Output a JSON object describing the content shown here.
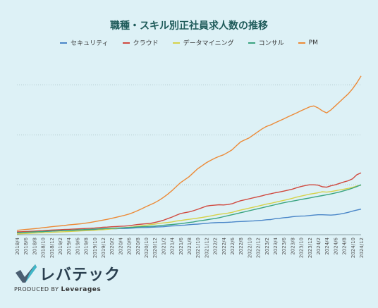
{
  "logo": {
    "name": "レバテック",
    "produced_by": "PRODUCED BY",
    "brand": "Leverages"
  },
  "colors": {
    "background": "#ddf1f6",
    "grid": "#b0c8cc"
  },
  "chart_data": {
    "type": "line",
    "title": "職種・スキル別正社員求人数の推移",
    "xlabel": "",
    "ylabel": "",
    "grid": true,
    "legend_placement": "top-center",
    "x": [
      "2018/4",
      "2018/5",
      "2018/6",
      "2018/7",
      "2018/8",
      "2018/9",
      "2018/10",
      "2018/11",
      "2018/12",
      "2019/1",
      "2019/2",
      "2019/3",
      "2019/4",
      "2019/5",
      "2019/6",
      "2019/7",
      "2019/8",
      "2019/9",
      "2019/10",
      "2019/11",
      "2019/12",
      "2020/1",
      "2020/2",
      "2020/3",
      "2020/4",
      "2020/5",
      "2020/6",
      "2020/7",
      "2020/8",
      "2020/9",
      "2020/10",
      "2020/11",
      "2020/12",
      "2021/1",
      "2021/2",
      "2021/3",
      "2021/4",
      "2021/5",
      "2021/6",
      "2021/7",
      "2021/8",
      "2021/9",
      "2021/10",
      "2021/11",
      "2021/12",
      "2022/1",
      "2022/2",
      "2022/3",
      "2022/4",
      "2022/5",
      "2022/6",
      "2022/7",
      "2022/8",
      "2022/9",
      "2022/10",
      "2022/11",
      "2022/12",
      "2023/1",
      "2023/2",
      "2023/3",
      "2023/4",
      "2023/5",
      "2023/6",
      "2023/7",
      "2023/8",
      "2023/9",
      "2023/10",
      "2023/11",
      "2023/12",
      "2024/1",
      "2024/2",
      "2024/3",
      "2024/4",
      "2024/5",
      "2024/6",
      "2024/7",
      "2024/8",
      "2024/9",
      "2024/10",
      "2024/11",
      "2024/12"
    ],
    "x_tick_labels": [
      "2018/4",
      "2018/6",
      "2018/8",
      "2018/10",
      "2018/12",
      "2019/2",
      "2019/4",
      "2019/6",
      "2019/8",
      "2019/10",
      "2019/12",
      "2020/2",
      "2020/4",
      "2020/6",
      "2020/8",
      "2020/10",
      "2020/12",
      "2021/2",
      "2021/4",
      "2021/6",
      "2021/8",
      "2021/10",
      "2021/12",
      "2022/2",
      "2022/4",
      "2022/6",
      "2022/8",
      "2022/10",
      "2022/12",
      "2023/2",
      "2023/4",
      "2023/6",
      "2023/8",
      "2023/10",
      "2023/12",
      "2024/2",
      "2024/4",
      "2024/6",
      "2024/8",
      "2024/10",
      "2024/12"
    ],
    "series": [
      {
        "name": "セキュリティ",
        "color": "#4a86c8",
        "values": [
          1.0,
          1.1,
          1.2,
          1.3,
          1.4,
          1.5,
          1.6,
          1.7,
          1.8,
          1.9,
          2.0,
          2.1,
          2.1,
          2.2,
          2.3,
          2.3,
          2.4,
          2.5,
          2.5,
          2.6,
          2.7,
          2.8,
          3.0,
          3.0,
          3.1,
          3.1,
          3.2,
          3.3,
          3.5,
          3.6,
          3.6,
          3.7,
          3.8,
          3.9,
          4.0,
          4.2,
          4.4,
          4.5,
          4.7,
          4.8,
          5.0,
          5.2,
          5.3,
          5.5,
          5.7,
          5.9,
          6.0,
          6.1,
          6.1,
          6.2,
          6.3,
          6.5,
          6.6,
          6.7,
          6.8,
          6.9,
          7.1,
          7.2,
          7.5,
          7.6,
          8.0,
          8.2,
          8.5,
          8.7,
          9.0,
          9.2,
          9.3,
          9.4,
          9.6,
          9.8,
          10.0,
          10.0,
          9.9,
          9.8,
          10.0,
          10.3,
          10.7,
          11.2,
          11.8,
          12.3,
          12.8
        ]
      },
      {
        "name": "クラウド",
        "color": "#d0493f",
        "values": [
          1.4,
          1.5,
          1.6,
          1.7,
          1.8,
          1.9,
          2.0,
          2.2,
          2.3,
          2.4,
          2.5,
          2.6,
          2.7,
          2.8,
          2.9,
          3.0,
          3.1,
          3.2,
          3.3,
          3.5,
          3.7,
          3.8,
          4.0,
          4.1,
          4.2,
          4.3,
          4.5,
          4.8,
          5.1,
          5.3,
          5.5,
          5.7,
          6.1,
          6.6,
          7.2,
          8.0,
          8.8,
          9.7,
          10.6,
          11.0,
          11.4,
          12.0,
          12.7,
          13.5,
          14.3,
          14.6,
          14.8,
          15.0,
          14.9,
          15.1,
          15.5,
          16.3,
          17.0,
          17.5,
          18.0,
          18.5,
          19.0,
          19.5,
          20.1,
          20.5,
          21.0,
          21.4,
          21.8,
          22.3,
          22.8,
          23.5,
          24.1,
          24.6,
          25.0,
          25.0,
          24.8,
          24.0,
          23.8,
          24.5,
          25.0,
          25.7,
          26.4,
          27.0,
          28.0,
          30.0,
          31.0
        ]
      },
      {
        "name": "データマイニング",
        "color": "#d6d24a",
        "values": [
          0.4,
          0.5,
          0.6,
          0.7,
          0.8,
          0.9,
          1.0,
          1.1,
          1.2,
          1.3,
          1.4,
          1.5,
          1.6,
          1.7,
          1.8,
          1.9,
          2.0,
          2.1,
          2.2,
          2.4,
          2.5,
          2.7,
          2.9,
          3.1,
          3.3,
          3.5,
          3.7,
          3.9,
          4.2,
          4.5,
          4.8,
          5.1,
          5.3,
          5.6,
          5.9,
          6.1,
          6.4,
          6.8,
          7.1,
          7.4,
          7.7,
          8.0,
          8.3,
          8.6,
          9.0,
          9.4,
          9.8,
          10.2,
          10.5,
          10.8,
          11.2,
          11.8,
          12.3,
          12.8,
          13.3,
          13.8,
          14.3,
          14.8,
          15.3,
          15.7,
          16.2,
          16.7,
          17.2,
          17.7,
          18.2,
          18.8,
          19.3,
          19.8,
          20.3,
          20.6,
          21.0,
          21.5,
          21.3,
          21.6,
          22.0,
          22.4,
          22.8,
          23.2,
          23.7,
          24.4,
          24.8
        ]
      },
      {
        "name": "コンサル",
        "color": "#3aa480",
        "values": [
          1.0,
          1.1,
          1.2,
          1.3,
          1.4,
          1.5,
          1.6,
          1.7,
          1.8,
          1.9,
          2.0,
          2.1,
          2.2,
          2.3,
          2.4,
          2.5,
          2.6,
          2.7,
          2.8,
          2.9,
          3.0,
          3.1,
          3.2,
          3.3,
          3.4,
          3.5,
          3.6,
          3.7,
          3.9,
          4.0,
          4.1,
          4.2,
          4.3,
          4.5,
          4.7,
          4.9,
          5.1,
          5.3,
          5.5,
          5.8,
          6.1,
          6.4,
          6.8,
          7.1,
          7.4,
          7.8,
          8.1,
          8.5,
          9.0,
          9.5,
          10.0,
          10.5,
          11.0,
          11.5,
          12.0,
          12.5,
          13.0,
          13.5,
          14.0,
          14.5,
          15.0,
          15.5,
          16.0,
          16.4,
          16.8,
          17.2,
          17.6,
          18.0,
          18.4,
          18.8,
          19.2,
          19.6,
          20.0,
          20.4,
          20.9,
          21.4,
          22.0,
          22.6,
          23.3,
          24.1,
          25.0
        ]
      },
      {
        "name": "PM",
        "color": "#ec8a37",
        "values": [
          2.2,
          2.4,
          2.6,
          2.8,
          3.0,
          3.2,
          3.5,
          3.7,
          4.0,
          4.2,
          4.4,
          4.6,
          4.9,
          5.1,
          5.3,
          5.5,
          5.8,
          6.1,
          6.5,
          6.9,
          7.3,
          7.7,
          8.2,
          8.7,
          9.2,
          9.7,
          10.3,
          11.1,
          12.0,
          13.0,
          14.0,
          15.0,
          16.0,
          17.2,
          18.6,
          20.2,
          22.0,
          24.0,
          26.0,
          27.5,
          29.0,
          31.0,
          33.0,
          34.5,
          36.0,
          37.2,
          38.3,
          39.2,
          40.0,
          41.2,
          42.5,
          44.5,
          46.5,
          47.5,
          48.5,
          50.0,
          51.5,
          53.0,
          54.2,
          55.0,
          56.0,
          57.0,
          58.0,
          59.0,
          60.0,
          61.0,
          62.0,
          63.0,
          64.0,
          64.5,
          63.5,
          62.0,
          61.0,
          62.5,
          64.5,
          66.5,
          68.5,
          70.5,
          73.0,
          76.0,
          79.5
        ]
      }
    ]
  }
}
